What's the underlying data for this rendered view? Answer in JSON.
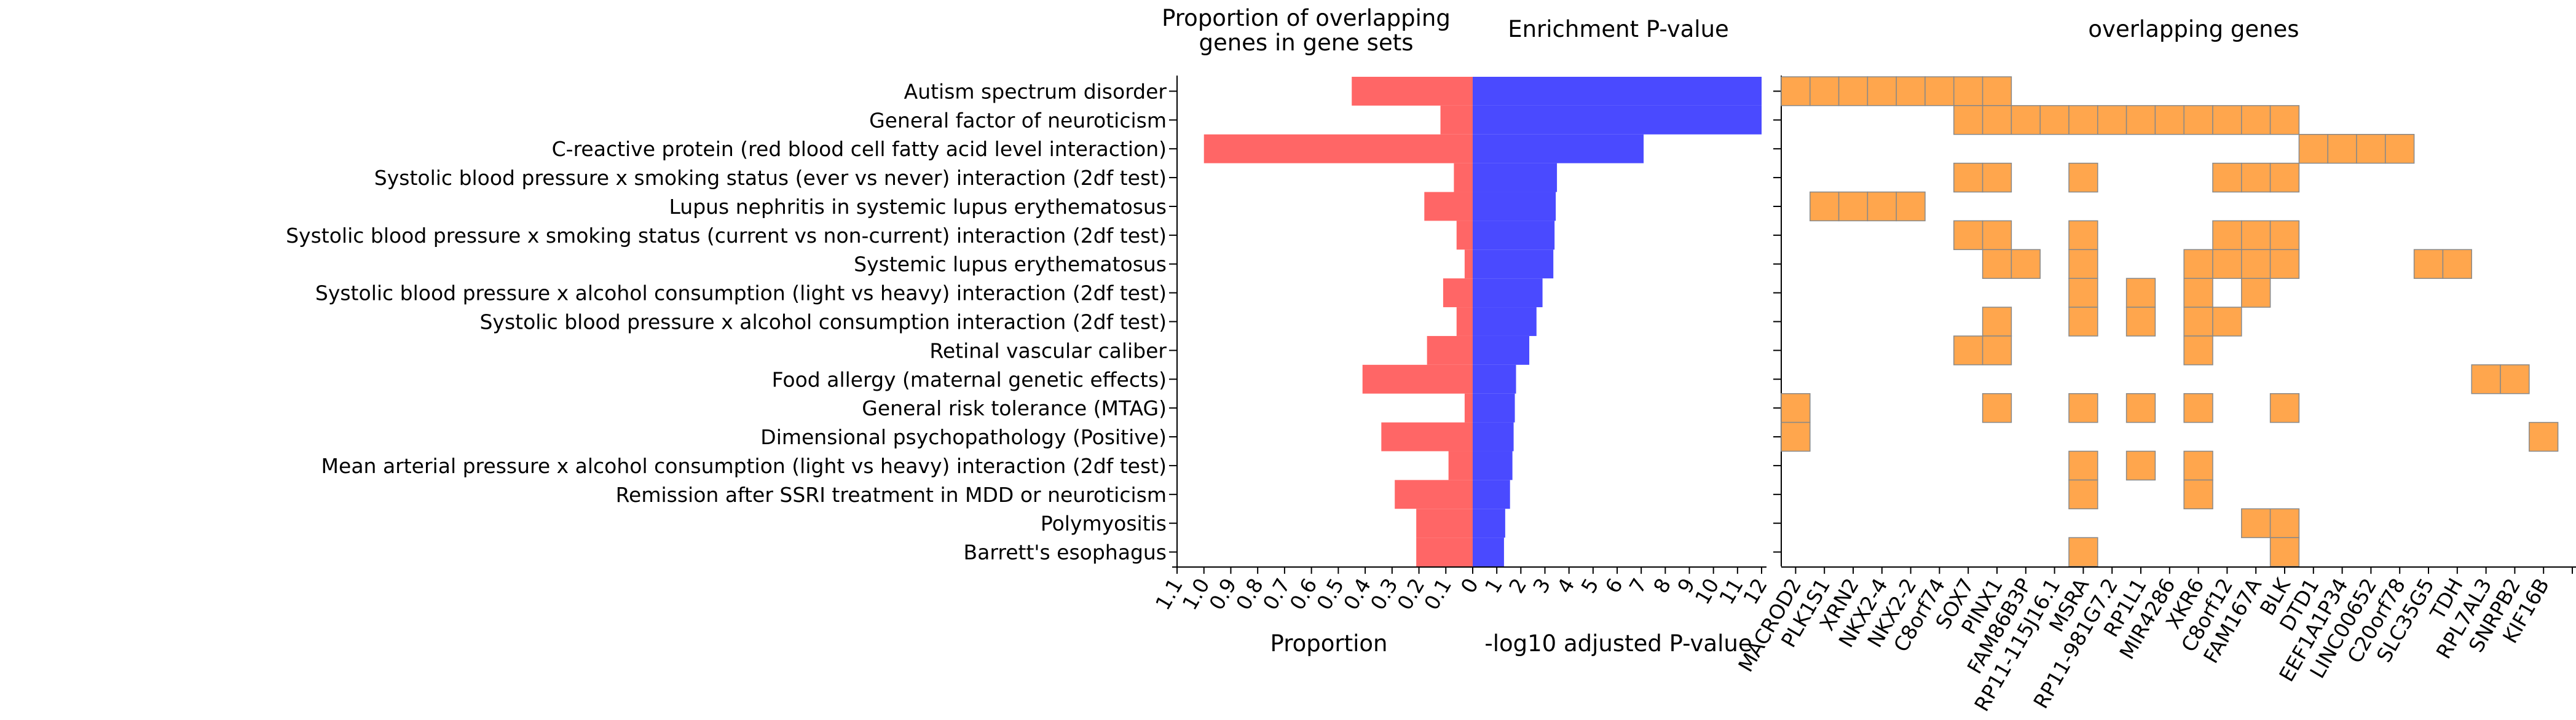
{
  "chart_data": {
    "type": "bar",
    "gene_sets": [
      "Autism spectrum disorder",
      "General factor of neuroticism",
      "C-reactive protein (red blood cell fatty acid level interaction)",
      "Systolic blood pressure x smoking status (ever vs never) interaction (2df test)",
      "Lupus nephritis in systemic lupus erythematosus",
      "Systolic blood pressure x smoking status (current vs non-current) interaction (2df test)",
      "Systemic lupus erythematosus",
      "Systolic blood pressure x alcohol consumption (light vs heavy) interaction (2df test)",
      "Systolic blood pressure x alcohol consumption interaction (2df test)",
      "Retinal vascular caliber",
      "Food allergy (maternal genetic effects)",
      "General risk tolerance (MTAG)",
      "Dimensional psychopathology (Positive)",
      "Mean arterial pressure x alcohol consumption (light vs heavy) interaction (2df test)",
      "Remission after SSRI treatment in MDD or neuroticism",
      "Polymyositis",
      "Barrett's esophagus"
    ],
    "proportion_panel": {
      "title_line1": "Proportion of overlapping",
      "title_line2": "genes in gene sets",
      "xlabel": "Proportion",
      "ticks": [
        "1.1",
        "1.0",
        "0.9",
        "0.8",
        "0.7",
        "0.6",
        "0.5",
        "0.4",
        "0.3",
        "0.2",
        "0.1",
        "0"
      ],
      "xlim": [
        0,
        1.1
      ],
      "color": "#ff6666",
      "values": [
        0.45,
        0.12,
        1.0,
        0.07,
        0.18,
        0.06,
        0.03,
        0.11,
        0.06,
        0.17,
        0.41,
        0.03,
        0.34,
        0.09,
        0.29,
        0.21,
        0.21
      ]
    },
    "pvalue_panel": {
      "title": "Enrichment P-value",
      "xlabel": "-log10 adjusted P-value",
      "ticks": [
        "0",
        "1",
        "2",
        "3",
        "4",
        "5",
        "6",
        "7",
        "8",
        "9",
        "10",
        "11",
        "12"
      ],
      "xlim": [
        0,
        12
      ],
      "color": "#4a4aff",
      "values": [
        12.0,
        12.0,
        7.1,
        3.5,
        3.45,
        3.4,
        3.35,
        2.9,
        2.65,
        2.35,
        1.8,
        1.75,
        1.7,
        1.65,
        1.55,
        1.35,
        1.3
      ]
    },
    "genes_panel": {
      "title": "overlapping genes",
      "color": "#ffa64d",
      "genes": [
        "MACROD2",
        "PLK1S1",
        "XRN2",
        "NKX2-4",
        "NKX2-2",
        "C8orf74",
        "SOX7",
        "PINX1",
        "FAM86B3P",
        "RP11-115J16.1",
        "MSRA",
        "RP11-981G7.2",
        "RP1L1",
        "MIR4286",
        "XKR6",
        "C8orf12",
        "FAM167A",
        "BLK",
        "DTD1",
        "EEF1A1P34",
        "LINC00652",
        "C20orf78",
        "SLC35G5",
        "TDH",
        "RPL7AL3",
        "SNRPB2",
        "KIF16B"
      ],
      "gene_columns": [
        0,
        1,
        2,
        3,
        4,
        5,
        6,
        7,
        8,
        9,
        10,
        11,
        12,
        13,
        14,
        15,
        16,
        17,
        18,
        19,
        20,
        21,
        22,
        23,
        24,
        25,
        26,
        27,
        28,
        29,
        30,
        31,
        32,
        33,
        34,
        35,
        36,
        37,
        38,
        39,
        40,
        41,
        42,
        43,
        44,
        45,
        46,
        47,
        48,
        49,
        50,
        51,
        52
      ],
      "matrix": [
        [
          0,
          1,
          2,
          3,
          4,
          5,
          6,
          7
        ],
        [
          6,
          7,
          8,
          9,
          10,
          11,
          12,
          13,
          14,
          15,
          16,
          17
        ],
        [
          18,
          19,
          20,
          21
        ],
        [
          6,
          7,
          10,
          15,
          16,
          17
        ],
        [
          1,
          2,
          3,
          4
        ],
        [
          6,
          7,
          10,
          15,
          16,
          17
        ],
        [
          7,
          8,
          10,
          14,
          15,
          16,
          17,
          22,
          23
        ],
        [
          10,
          12,
          14,
          16
        ],
        [
          7,
          10,
          12,
          14,
          15
        ],
        [
          6,
          7,
          14
        ],
        [
          24,
          25
        ],
        [
          0,
          7,
          10,
          12,
          14,
          17
        ],
        [
          0,
          26
        ],
        [
          10,
          12,
          14
        ],
        [
          10,
          14
        ],
        [
          16,
          17
        ],
        [
          10,
          17
        ]
      ]
    }
  }
}
